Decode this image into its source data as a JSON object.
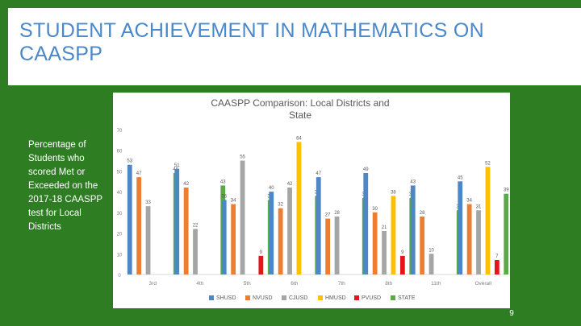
{
  "slide": {
    "title": "STUDENT ACHIEVEMENT IN MATHEMATICS ON CAASPP",
    "side_text": "Percentage of Students who scored Met or Exceeded on the 2017-18 CAASPP test for Local Districts",
    "page_number": "9"
  },
  "colors": {
    "background": "#2e7d23",
    "title": "#4a88c9"
  },
  "chart_data": {
    "type": "bar",
    "title": "CAASPP Comparison: Local Districts and State",
    "xlabel": "",
    "ylabel": "",
    "ylim": [
      0,
      70
    ],
    "yticks": [
      "0",
      "10",
      "20",
      "30",
      "40",
      "50",
      "60",
      "70"
    ],
    "grid": false,
    "legend_position": "bottom",
    "categories": [
      "3rd",
      "4th",
      "5th",
      "6th",
      "7th",
      "8th",
      "11th",
      "Overall"
    ],
    "series": [
      {
        "name": "SHUSD",
        "color": "#4f87c6",
        "values": [
          53,
          51,
          36,
          40,
          47,
          49,
          43,
          45
        ]
      },
      {
        "name": "NVUSD",
        "color": "#ed7d31",
        "values": [
          47,
          42,
          34,
          32,
          27,
          30,
          28,
          34
        ]
      },
      {
        "name": "CJUSD",
        "color": "#a5a5a5",
        "values": [
          33,
          22,
          55,
          42,
          28,
          21,
          10,
          31
        ]
      },
      {
        "name": "HMUSD",
        "color": "#ffc000",
        "values": [
          null,
          null,
          null,
          64,
          null,
          38,
          null,
          52
        ]
      },
      {
        "name": "PVUSD",
        "color": "#e8141b",
        "values": [
          null,
          null,
          9,
          null,
          null,
          9,
          null,
          7
        ]
      },
      {
        "name": "STATE",
        "color": "#5aaa46",
        "values": [
          49,
          43,
          36,
          38,
          37,
          37,
          31,
          39
        ]
      }
    ],
    "data_labels": [
      [
        "53",
        "47",
        "33",
        "",
        "",
        "49"
      ],
      [
        "51",
        "42",
        "22",
        "",
        "",
        "43"
      ],
      [
        "36",
        "34",
        "55",
        "",
        "9",
        "36"
      ],
      [
        "40",
        "32",
        "42",
        "64",
        "",
        "38"
      ],
      [
        "47",
        "27",
        "28",
        "",
        "",
        "37"
      ],
      [
        "49",
        "30",
        "21",
        "38",
        "9",
        "37"
      ],
      [
        "43",
        "28",
        "10",
        "",
        "",
        "31"
      ],
      [
        "45",
        "34",
        "31",
        "52",
        "7",
        "39"
      ]
    ]
  }
}
